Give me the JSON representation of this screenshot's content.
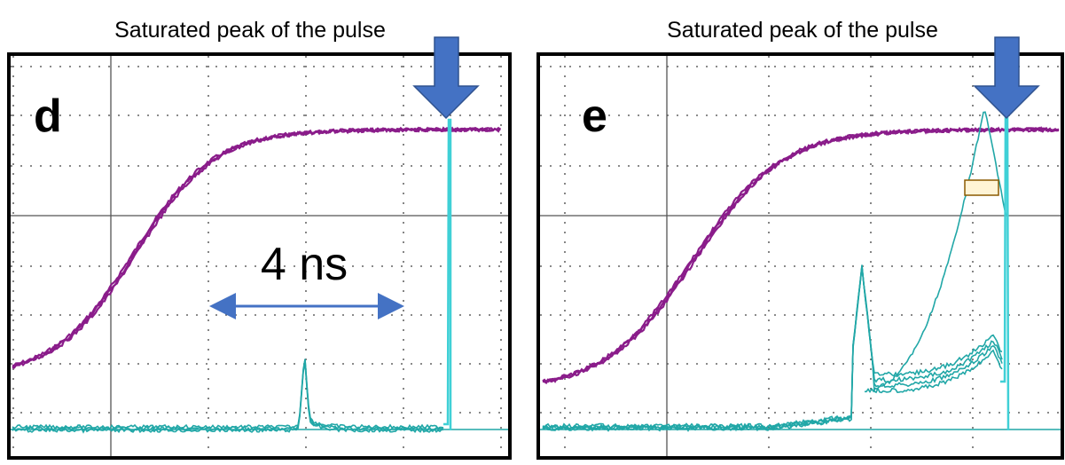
{
  "panels": [
    {
      "label": "d",
      "caption": "Saturated peak of the pulse",
      "annotation": "4 ns"
    },
    {
      "label": "e",
      "caption": "Saturated peak of the pulse"
    }
  ]
}
